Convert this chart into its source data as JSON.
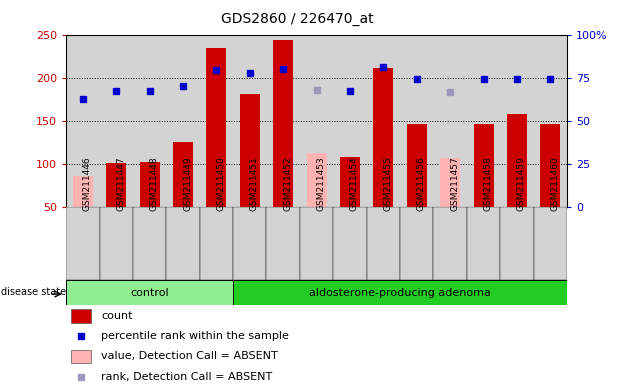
{
  "title": "GDS2860 / 226470_at",
  "samples": [
    "GSM211446",
    "GSM211447",
    "GSM211448",
    "GSM211449",
    "GSM211450",
    "GSM211451",
    "GSM211452",
    "GSM211453",
    "GSM211454",
    "GSM211455",
    "GSM211456",
    "GSM211457",
    "GSM211458",
    "GSM211459",
    "GSM211460"
  ],
  "n_control": 5,
  "bar_values": [
    null,
    101,
    103,
    126,
    235,
    181,
    244,
    null,
    108,
    211,
    146,
    null,
    146,
    158,
    147
  ],
  "absent_bar_values": [
    86,
    null,
    null,
    null,
    null,
    null,
    null,
    113,
    null,
    null,
    null,
    107,
    null,
    null,
    null
  ],
  "blue_dot_values": [
    175,
    185,
    185,
    191,
    209,
    205,
    210,
    185,
    185,
    213,
    199,
    181,
    198,
    198,
    199
  ],
  "absent_dot_values": [
    null,
    null,
    null,
    null,
    null,
    null,
    null,
    186,
    null,
    null,
    null,
    183,
    null,
    null,
    null
  ],
  "detection_absent": [
    true,
    false,
    false,
    false,
    false,
    false,
    false,
    true,
    false,
    false,
    false,
    true,
    false,
    false,
    false
  ],
  "ylim_left": [
    50,
    250
  ],
  "ylim_right": [
    0,
    100
  ],
  "yticks_left": [
    50,
    100,
    150,
    200,
    250
  ],
  "yticks_right": [
    0,
    25,
    50,
    75,
    100
  ],
  "ylabel_left_color": "#cc0000",
  "ylabel_right_color": "#0000cc",
  "bar_color": "#cc0000",
  "absent_bar_color": "#ffb3b3",
  "dot_color": "#0000cc",
  "absent_dot_color": "#9999bb",
  "plot_bg": "#ffffff",
  "col_bg": "#d3d3d3",
  "control_color": "#90ee90",
  "adenoma_color": "#22cc22",
  "legend_items": [
    {
      "label": "count",
      "color": "#cc0000",
      "type": "bar"
    },
    {
      "label": "percentile rank within the sample",
      "color": "#0000cc",
      "type": "dot"
    },
    {
      "label": "value, Detection Call = ABSENT",
      "color": "#ffb3b3",
      "type": "bar"
    },
    {
      "label": "rank, Detection Call = ABSENT",
      "color": "#9999bb",
      "type": "dot"
    }
  ]
}
